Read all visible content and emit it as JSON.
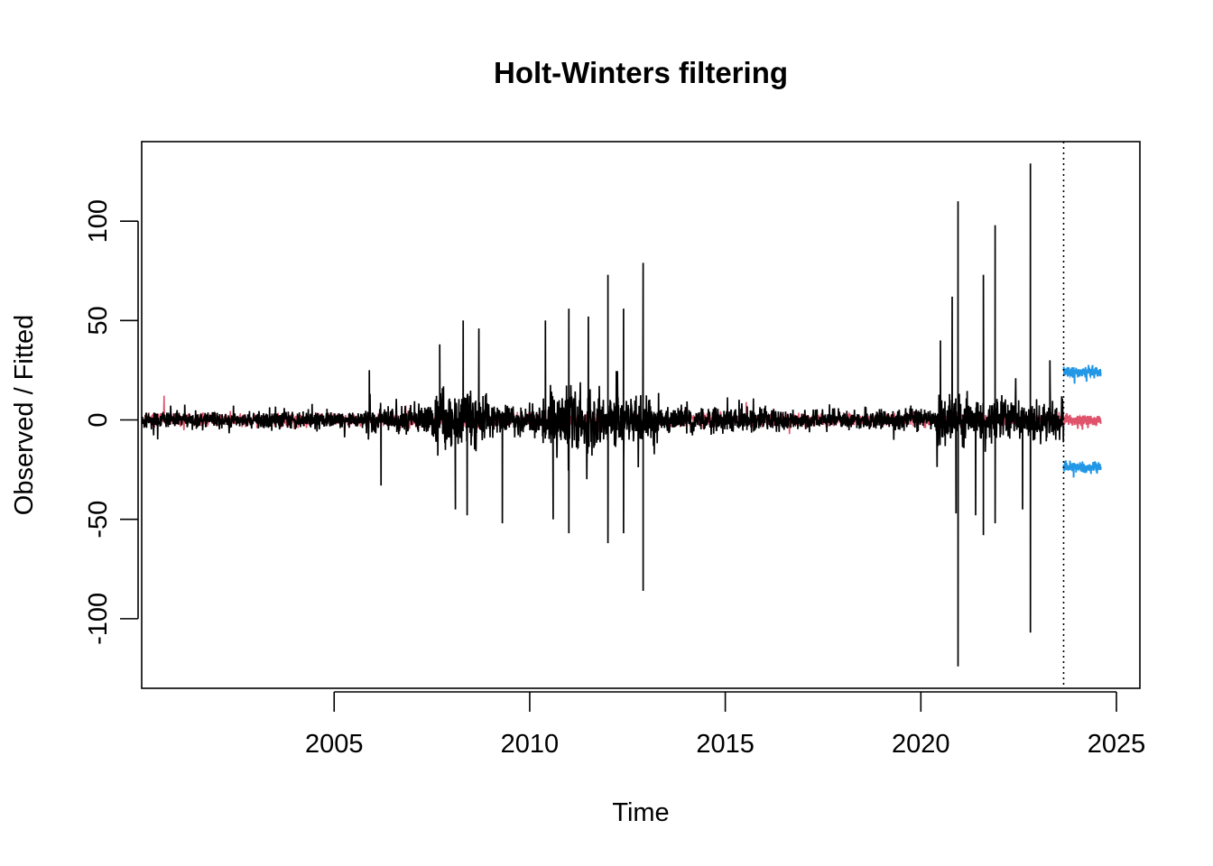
{
  "chart_data": {
    "type": "line",
    "title": "Holt-Winters filtering",
    "xlabel": "Time",
    "ylabel": "Observed / Fitted",
    "xlim": [
      2000.08,
      2025.6
    ],
    "ylim": [
      -135,
      140
    ],
    "x_ticks": [
      2005,
      2010,
      2015,
      2020,
      2025
    ],
    "x_tick_labels": [
      "2005",
      "2010",
      "2015",
      "2020",
      "2025"
    ],
    "y_ticks": [
      -100,
      -50,
      0,
      50,
      100
    ],
    "y_tick_labels": [
      "-100",
      "-50",
      "0",
      "50",
      "100"
    ],
    "grid": false,
    "forecast_start": 2023.65,
    "series": [
      {
        "role": "observed",
        "color": "#000000",
        "x_range": [
          2000.1,
          2023.65
        ],
        "volatility_regimes": [
          {
            "from": 2000.1,
            "to": 2005.8,
            "typical_amplitude": 6
          },
          {
            "from": 2005.8,
            "to": 2007.5,
            "typical_amplitude": 10
          },
          {
            "from": 2007.5,
            "to": 2009.0,
            "typical_amplitude": 20
          },
          {
            "from": 2009.0,
            "to": 2010.3,
            "typical_amplitude": 11
          },
          {
            "from": 2010.3,
            "to": 2011.8,
            "typical_amplitude": 21
          },
          {
            "from": 2011.8,
            "to": 2013.3,
            "typical_amplitude": 16
          },
          {
            "from": 2013.3,
            "to": 2016.5,
            "typical_amplitude": 9
          },
          {
            "from": 2016.5,
            "to": 2020.4,
            "typical_amplitude": 7
          },
          {
            "from": 2020.4,
            "to": 2021.2,
            "typical_amplitude": 18
          },
          {
            "from": 2021.2,
            "to": 2023.65,
            "typical_amplitude": 14
          }
        ],
        "spikes": [
          {
            "x": 2007.7,
            "y": 38
          },
          {
            "x": 2008.1,
            "y": -45
          },
          {
            "x": 2008.3,
            "y": 50
          },
          {
            "x": 2008.4,
            "y": -48
          },
          {
            "x": 2008.7,
            "y": 46
          },
          {
            "x": 2009.3,
            "y": -52
          },
          {
            "x": 2010.4,
            "y": 50
          },
          {
            "x": 2010.6,
            "y": -50
          },
          {
            "x": 2011.0,
            "y": 56
          },
          {
            "x": 2011.0,
            "y": -57
          },
          {
            "x": 2011.5,
            "y": 52
          },
          {
            "x": 2012.0,
            "y": 73
          },
          {
            "x": 2012.0,
            "y": -62
          },
          {
            "x": 2012.4,
            "y": 56
          },
          {
            "x": 2012.4,
            "y": -57
          },
          {
            "x": 2012.9,
            "y": 79
          },
          {
            "x": 2012.9,
            "y": -86
          },
          {
            "x": 2006.2,
            "y": -33
          },
          {
            "x": 2005.9,
            "y": 25
          },
          {
            "x": 2020.5,
            "y": 40
          },
          {
            "x": 2020.8,
            "y": 62
          },
          {
            "x": 2020.9,
            "y": -47
          },
          {
            "x": 2020.95,
            "y": 110
          },
          {
            "x": 2020.95,
            "y": -124
          },
          {
            "x": 2021.4,
            "y": -48
          },
          {
            "x": 2021.6,
            "y": -58
          },
          {
            "x": 2021.6,
            "y": 73
          },
          {
            "x": 2021.9,
            "y": 98
          },
          {
            "x": 2021.9,
            "y": -52
          },
          {
            "x": 2022.6,
            "y": -45
          },
          {
            "x": 2022.8,
            "y": 129
          },
          {
            "x": 2022.8,
            "y": -107
          },
          {
            "x": 2023.3,
            "y": 30
          }
        ]
      },
      {
        "role": "fitted",
        "color": "#DF536B",
        "x_range": [
          2000.1,
          2023.65
        ],
        "typical_amplitude": 5
      },
      {
        "role": "forecast",
        "color": "#DF536B",
        "x_range": [
          2023.65,
          2024.6
        ],
        "center": 0,
        "typical_amplitude": 4
      },
      {
        "role": "upper_bound",
        "color": "#2297E6",
        "x_range": [
          2023.65,
          2024.6
        ],
        "center": 24,
        "typical_amplitude": 4
      },
      {
        "role": "lower_bound",
        "color": "#2297E6",
        "x_range": [
          2023.65,
          2024.6
        ],
        "center": -24,
        "typical_amplitude": 4
      }
    ]
  }
}
